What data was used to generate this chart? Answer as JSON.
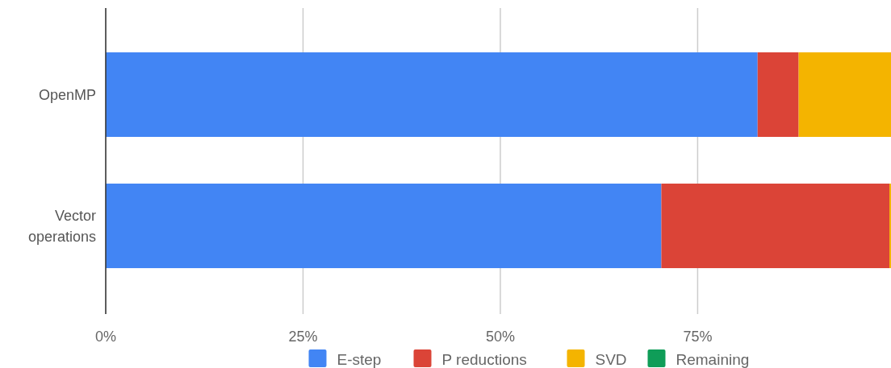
{
  "chart_data": {
    "type": "bar",
    "orientation": "horizontal",
    "stacked": true,
    "categories": [
      "OpenMP",
      "Vector operations"
    ],
    "series": [
      {
        "name": "E-step",
        "color": "#4285f4",
        "values": [
          82.6,
          70.4
        ]
      },
      {
        "name": "P reductions",
        "color": "#db4437",
        "values": [
          5.2,
          28.9
        ]
      },
      {
        "name": "SVD",
        "color": "#f4b400",
        "values": [
          11.7,
          0.2
        ]
      },
      {
        "name": "Remaining",
        "color": "#0f9d58",
        "values": [
          0,
          0
        ]
      }
    ],
    "xlim": [
      0,
      99.5
    ],
    "xticks": [
      {
        "value": 0,
        "label": "0%"
      },
      {
        "value": 25,
        "label": "25%"
      },
      {
        "value": 50,
        "label": "50%"
      },
      {
        "value": 75,
        "label": "75%"
      }
    ],
    "grid": "x",
    "legend": "bottom"
  }
}
